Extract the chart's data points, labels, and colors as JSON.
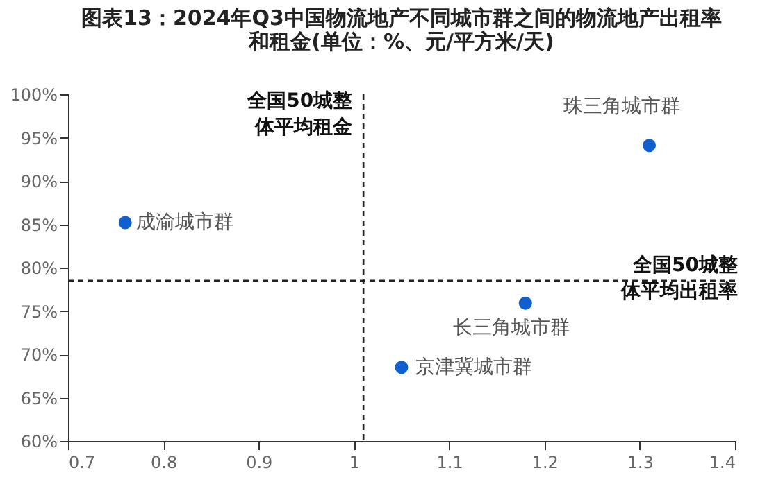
{
  "chart_data": {
    "type": "scatter",
    "title": "图表13：2024年Q3中国物流地产不同城市群之间的物流地产出租率和租金(单位：%、元/平方米/天)",
    "series": [
      {
        "name": "成渝城市群",
        "color": "#0f5fd0",
        "x": [
          0.76
        ],
        "values": [
          85.2
        ]
      },
      {
        "name": "珠三角城市群",
        "color": "#0f5fd0",
        "x": [
          1.31
        ],
        "values": [
          94.1
        ]
      },
      {
        "name": "长三角城市群",
        "color": "#0f5fd0",
        "x": [
          1.18
        ],
        "values": [
          75.9
        ]
      },
      {
        "name": "京津冀城市群",
        "color": "#0f5fd0",
        "x": [
          1.05
        ],
        "values": [
          68.5
        ]
      }
    ],
    "xlim": [
      0.7,
      1.4
    ],
    "xticks": [
      0.7,
      0.8,
      0.9,
      1,
      1.1,
      1.2,
      1.3,
      1.4
    ],
    "ylim": [
      60,
      100
    ],
    "yticks": [
      {
        "value": 60,
        "label": "60%"
      },
      {
        "value": 65,
        "label": "65%"
      },
      {
        "value": 70,
        "label": "70%"
      },
      {
        "value": 75,
        "label": "75%"
      },
      {
        "value": 80,
        "label": "80%"
      },
      {
        "value": 85,
        "label": "85%"
      },
      {
        "value": 90,
        "label": "90%"
      },
      {
        "value": 95,
        "label": "95%"
      },
      {
        "value": 100,
        "label": "100%"
      }
    ],
    "ref_lines": [
      {
        "axis": "x",
        "value": 1.01,
        "label": "全国50城整体平均租金",
        "color": "#222222",
        "line_style": "dashed"
      },
      {
        "axis": "y",
        "value": 78.5,
        "label": "全国50城整体平均出租率",
        "color": "#222222",
        "line_style": "dashed"
      }
    ],
    "marker": "circle",
    "grid": false
  }
}
